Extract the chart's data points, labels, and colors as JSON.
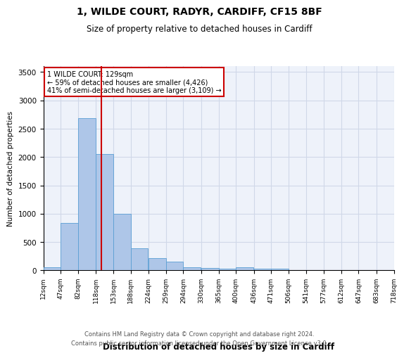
{
  "title_line1": "1, WILDE COURT, RADYR, CARDIFF, CF15 8BF",
  "title_line2": "Size of property relative to detached houses in Cardiff",
  "xlabel": "Distribution of detached houses by size in Cardiff",
  "ylabel": "Number of detached properties",
  "footnote1": "Contains HM Land Registry data © Crown copyright and database right 2024.",
  "footnote2": "Contains public sector information licensed under the Open Government Licence v3.0.",
  "annotation_line1": "1 WILDE COURT: 129sqm",
  "annotation_line2": "← 59% of detached houses are smaller (4,426)",
  "annotation_line3": "41% of semi-detached houses are larger (3,109) →",
  "property_size": 129,
  "bar_color": "#aec6e8",
  "bar_edge_color": "#5a9fd4",
  "vline_color": "#cc0000",
  "annotation_box_edge": "#cc0000",
  "grid_color": "#d0d8e8",
  "background_color": "#eef2fa",
  "bins": [
    12,
    47,
    82,
    118,
    153,
    188,
    224,
    259,
    294,
    330,
    365,
    400,
    436,
    471,
    506,
    541,
    577,
    612,
    647,
    683,
    718
  ],
  "bin_labels": [
    "12sqm",
    "47sqm",
    "82sqm",
    "118sqm",
    "153sqm",
    "188sqm",
    "224sqm",
    "259sqm",
    "294sqm",
    "330sqm",
    "365sqm",
    "400sqm",
    "436sqm",
    "471sqm",
    "506sqm",
    "541sqm",
    "577sqm",
    "612sqm",
    "647sqm",
    "683sqm",
    "718sqm"
  ],
  "counts": [
    55,
    840,
    2680,
    2050,
    1000,
    390,
    210,
    150,
    60,
    40,
    25,
    50,
    30,
    30,
    0,
    0,
    0,
    0,
    0,
    0
  ],
  "ylim": [
    0,
    3600
  ],
  "yticks": [
    0,
    500,
    1000,
    1500,
    2000,
    2500,
    3000,
    3500
  ]
}
